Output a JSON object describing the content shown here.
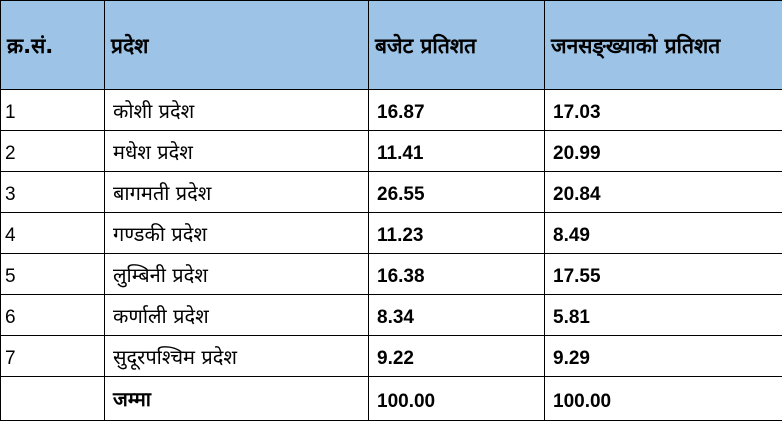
{
  "headers": [
    "क्र.सं.",
    "प्रदेश",
    "बजेट प्रतिशत",
    "जनसङ्ख्याको प्रतिशत"
  ],
  "rows": [
    {
      "sn": "1",
      "province": "कोशी प्रदेश",
      "budget": "16.87",
      "population": "17.03"
    },
    {
      "sn": "2",
      "province": "मधेश प्रदेश",
      "budget": "11.41",
      "population": "20.99"
    },
    {
      "sn": "3",
      "province": "बागमती प्रदेश",
      "budget": "26.55",
      "population": "20.84"
    },
    {
      "sn": "4",
      "province": "गण्डकी प्रदेश",
      "budget": "11.23",
      "population": "8.49"
    },
    {
      "sn": "5",
      "province": "लुम्बिनी प्रदेश",
      "budget": "16.38",
      "population": "17.55"
    },
    {
      "sn": "6",
      "province": "कर्णाली प्रदेश",
      "budget": "8.34",
      "population": "5.81"
    },
    {
      "sn": "7",
      "province": "सुदूरपश्चिम प्रदेश",
      "budget": "9.22",
      "population": "9.29"
    }
  ],
  "total": {
    "sn": "",
    "label": "जम्मा",
    "budget": "100.00",
    "population": "100.00"
  },
  "colors": {
    "header_bg": "#9dc3e6",
    "border": "#000000"
  }
}
